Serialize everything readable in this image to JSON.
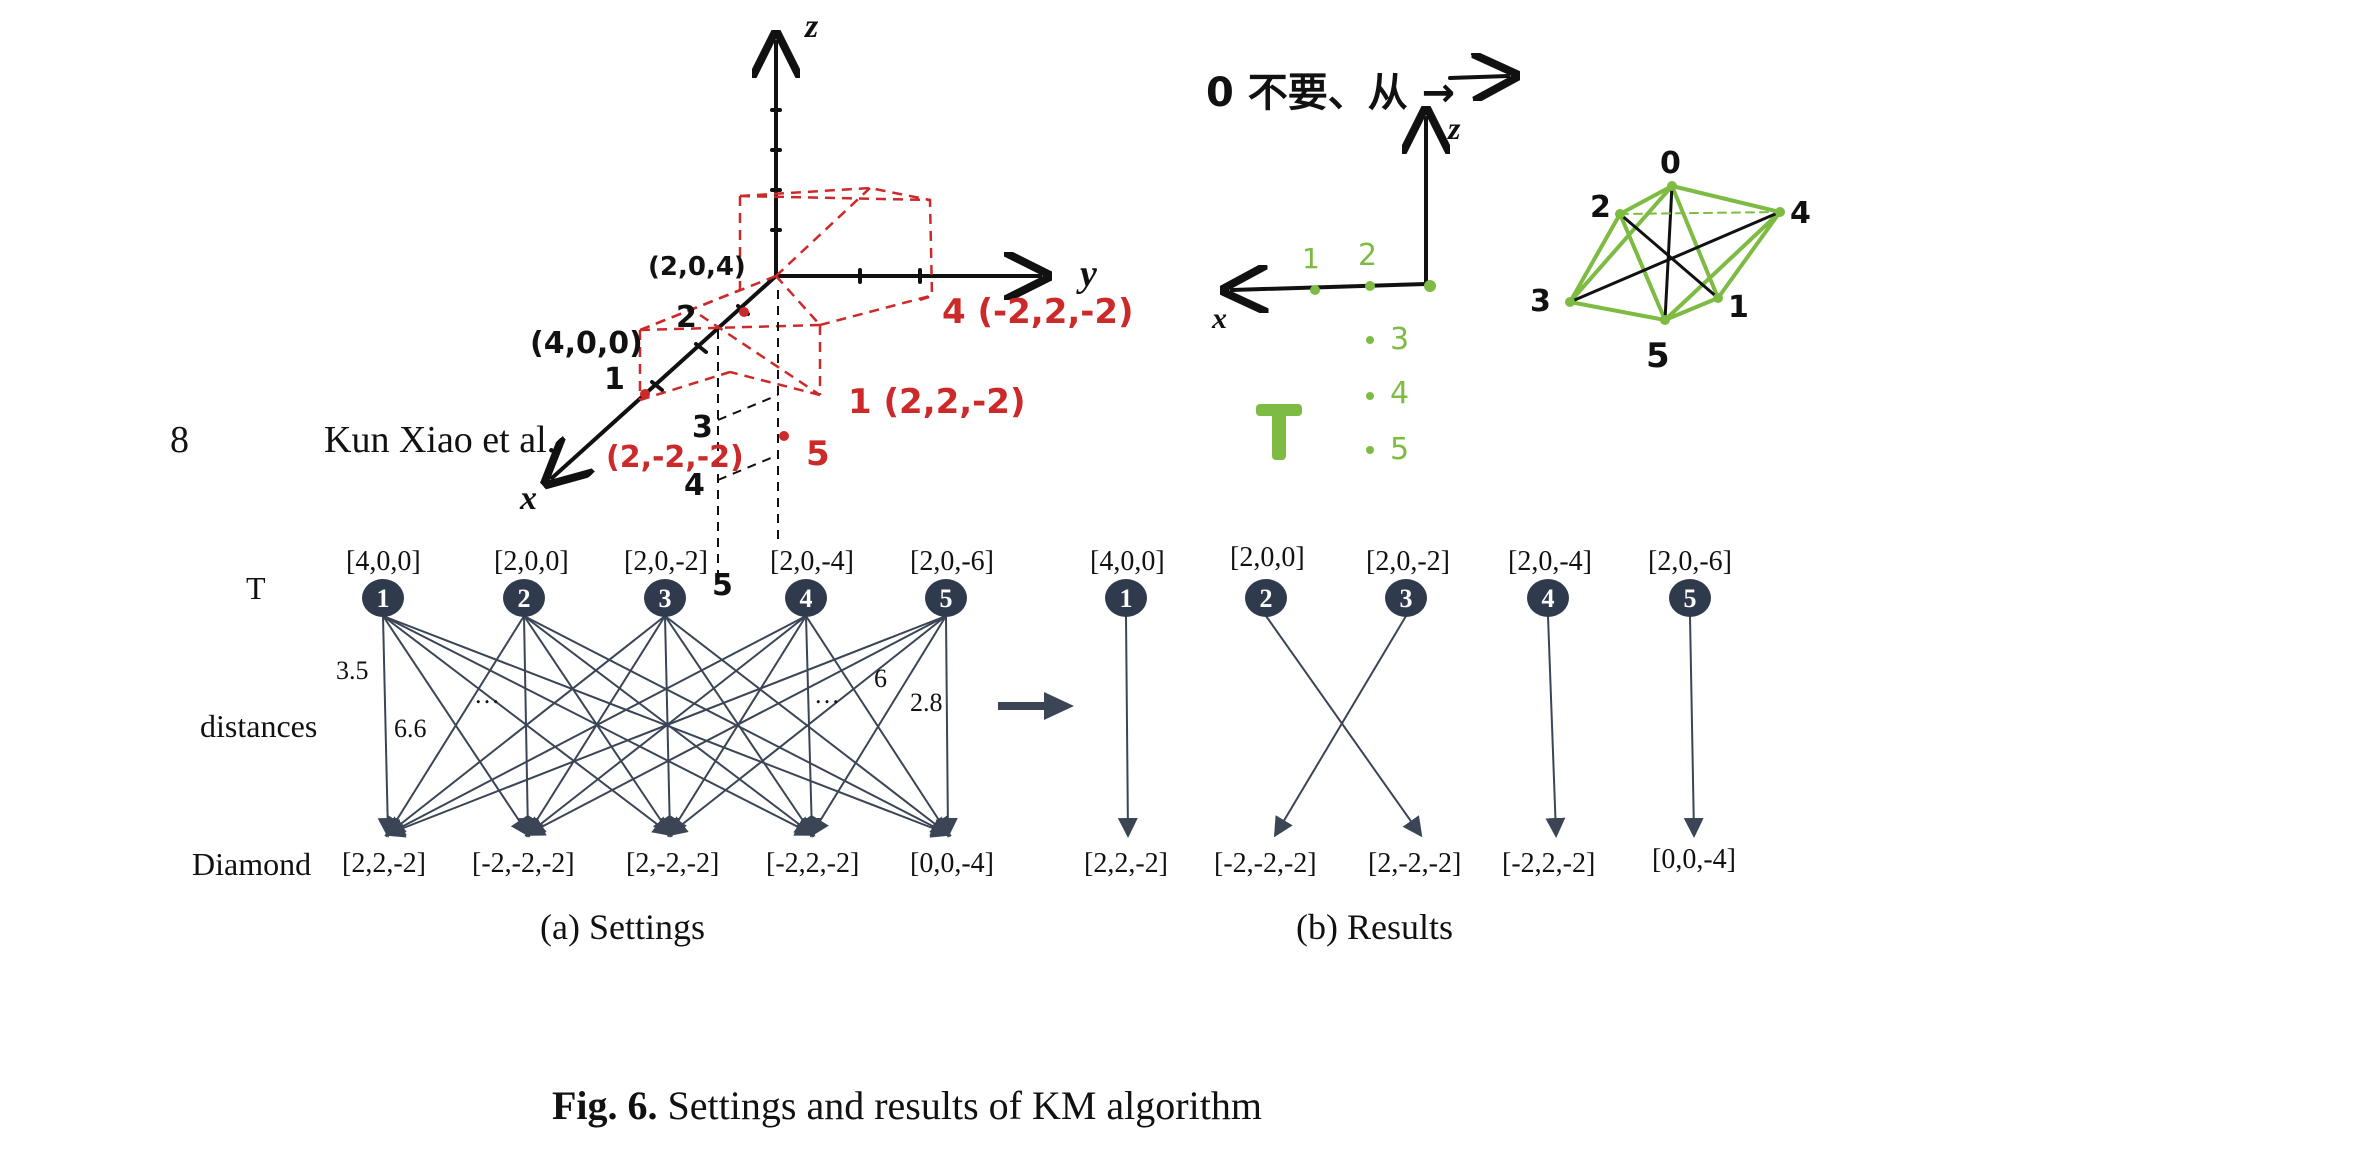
{
  "header": {
    "page_number": "8",
    "authors": "Kun Xiao et al."
  },
  "panel_a": {
    "row_labels": {
      "top": "T",
      "middle": "distances",
      "bottom": "Diamond"
    },
    "t_nodes": [
      {
        "id": "1",
        "coord": "[4,0,0]"
      },
      {
        "id": "2",
        "coord": "[2,0,0]"
      },
      {
        "id": "3",
        "coord": "[2,0,-2]"
      },
      {
        "id": "4",
        "coord": "[2,0,-4]"
      },
      {
        "id": "5",
        "coord": "[2,0,-6]"
      }
    ],
    "diamond_coords": [
      "[2,2,-2]",
      "[-2,-2,-2]",
      "[2,-2,-2]",
      "[-2,2,-2]",
      "[0,0,-4]"
    ],
    "distance_labels": [
      "3.5",
      "6.6",
      "…",
      "…",
      "6",
      "2.8"
    ],
    "caption": "(a)  Settings"
  },
  "panel_b": {
    "t_nodes": [
      {
        "id": "1",
        "coord": "[4,0,0]"
      },
      {
        "id": "2",
        "coord": "[2,0,0]"
      },
      {
        "id": "3",
        "coord": "[2,0,-2]"
      },
      {
        "id": "4",
        "coord": "[2,0,-4]"
      },
      {
        "id": "5",
        "coord": "[2,0,-6]"
      }
    ],
    "diamond_coords": [
      "[2,2,-2]",
      "[-2,-2,-2]",
      "[2,-2,-2]",
      "[-2,2,-2]",
      "[0,0,-4]"
    ],
    "caption": "(b)  Results"
  },
  "figure_caption": {
    "label": "Fig. 6.",
    "text": "Settings and results of KM algorithm"
  },
  "handwritten": {
    "axis_labels": {
      "z": "z",
      "y": "y",
      "x": "x"
    },
    "red_points": [
      "4 (-2,2,-2)",
      "1 (2,2,-2)",
      "(2,-2,-2)",
      "5"
    ],
    "black_points": [
      "(2,0,4)",
      "(4,0,0)",
      "2",
      "1",
      "3",
      "4",
      "5"
    ],
    "note": "0 不要、从 →",
    "right_axis_labels": {
      "z": "z",
      "x": "x"
    },
    "green_marks": [
      "1",
      "2",
      "3",
      "4",
      "5",
      "T"
    ],
    "octahedron_labels": [
      "0",
      "2",
      "4",
      "3",
      "1",
      "5"
    ]
  },
  "colors": {
    "node_fill": "#2f3a4c",
    "edge": "#3b4556",
    "ink_red": "#cc2a2a",
    "ink_green": "#7dbb42",
    "ink_black": "#111111"
  }
}
